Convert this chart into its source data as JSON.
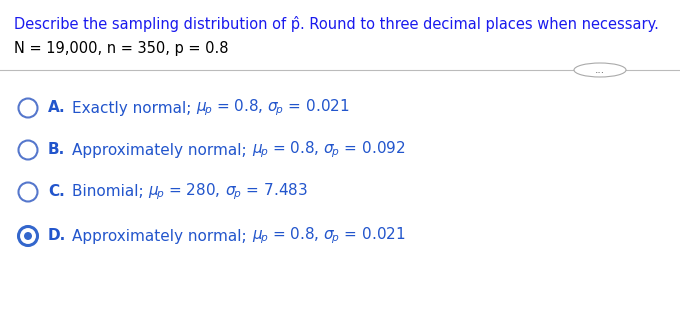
{
  "title_part1": "Describe the sampling distribution of p",
  "title_hat": "̂",
  "title_part2": ". Round to three decimal places when necessary.",
  "params_line": "N = 19,000, n = 350, p = 0.8",
  "options": [
    {
      "letter": "A.",
      "label": "Exactly normal; ",
      "mu_val": "0.8",
      "sigma_val": "0.021",
      "selected": false
    },
    {
      "letter": "B.",
      "label": "Approximately normal; ",
      "mu_val": "0.8",
      "sigma_val": "0.092",
      "selected": false
    },
    {
      "letter": "C.",
      "label": "Binomial; ",
      "mu_val": "280",
      "sigma_val": "7.483",
      "selected": false
    },
    {
      "letter": "D.",
      "label": "Approximately normal; ",
      "mu_val": "0.8",
      "sigma_val": "0.021",
      "selected": true
    }
  ],
  "bg_color": "#ffffff",
  "title_color": "#1a1aee",
  "param_color": "#000000",
  "option_color": "#2255cc",
  "circle_unselected_edge": "#5577cc",
  "circle_selected_edge": "#3366cc",
  "circle_selected_fill": "#3366cc",
  "font_size_title": 10.5,
  "font_size_params": 10.5,
  "font_size_options": 11,
  "line_color": "#bbbbbb",
  "btn_color": "#aaaaaa"
}
